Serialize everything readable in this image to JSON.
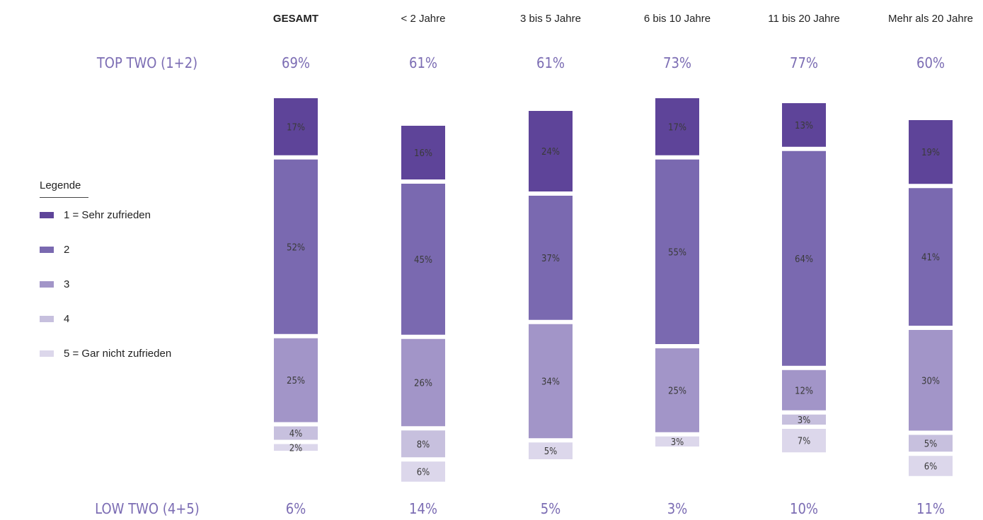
{
  "chart_data": {
    "type": "bar",
    "stacked": true,
    "categories": [
      "GESAMT",
      "< 2 Jahre",
      "3 bis 5 Jahre",
      "6 bis 10 Jahre",
      "11 bis 20 Jahre",
      "Mehr als 20 Jahre"
    ],
    "series": [
      {
        "name": "1 = Sehr zufrieden",
        "values": [
          17,
          16,
          24,
          17,
          13,
          19
        ],
        "color": "#5e4499"
      },
      {
        "name": "2",
        "values": [
          52,
          45,
          37,
          55,
          64,
          41
        ],
        "color": "#7a69b0"
      },
      {
        "name": "3",
        "values": [
          25,
          26,
          34,
          25,
          12,
          30
        ],
        "color": "#a295c8"
      },
      {
        "name": "4",
        "values": [
          4,
          8,
          0,
          0,
          3,
          5
        ],
        "color": "#c7c0de"
      },
      {
        "name": "5 = Gar nicht zufrieden",
        "values": [
          2,
          6,
          5,
          3,
          7,
          6
        ],
        "color": "#dcd7eb"
      }
    ],
    "top_two": {
      "label": "TOP TWO (1+2)",
      "values": [
        "69%",
        "61%",
        "61%",
        "73%",
        "77%",
        "60%"
      ]
    },
    "low_two": {
      "label": "LOW TWO (4+5)",
      "values": [
        "6%",
        "14%",
        "5%",
        "3%",
        "10%",
        "11%"
      ]
    },
    "legend": {
      "title": "Legende",
      "placement": "left"
    }
  }
}
